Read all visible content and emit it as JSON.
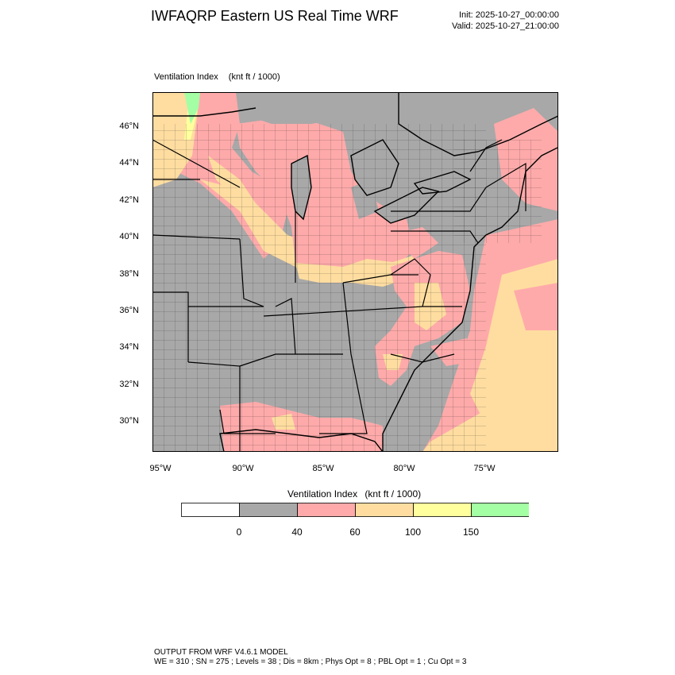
{
  "header": {
    "title": "IWFAQRP Eastern US Real Time WRF",
    "init": "Init: 2025-10-27_00:00:00",
    "valid": "Valid: 2025-10-27_21:00:00"
  },
  "plot": {
    "field_name": "Ventilation Index",
    "units": "(knt ft / 1000)"
  },
  "axes": {
    "lat_labels": [
      "46°N",
      "44°N",
      "42°N",
      "40°N",
      "38°N",
      "36°N",
      "34°N",
      "32°N",
      "30°N"
    ],
    "lon_labels": [
      "95°W",
      "90°W",
      "85°W",
      "80°W",
      "75°W"
    ]
  },
  "colorbar": {
    "title": "Ventilation Index",
    "units": "(knt ft / 1000)",
    "colors": [
      "#ffffff",
      "#a8a8a8",
      "#ffaaaa",
      "#ffdda0",
      "#ffff9e",
      "#a4ffa4"
    ],
    "tick_labels": [
      "0",
      "40",
      "60",
      "100",
      "150"
    ]
  },
  "footer": {
    "line1": "OUTPUT FROM WRF V4.6.1 MODEL",
    "line2": "WE = 310 ; SN = 275 ; Levels = 38 ; Dis = 8km ; Phys Opt = 8 ; PBL Opt = 1 ; Cu Opt = 3"
  }
}
